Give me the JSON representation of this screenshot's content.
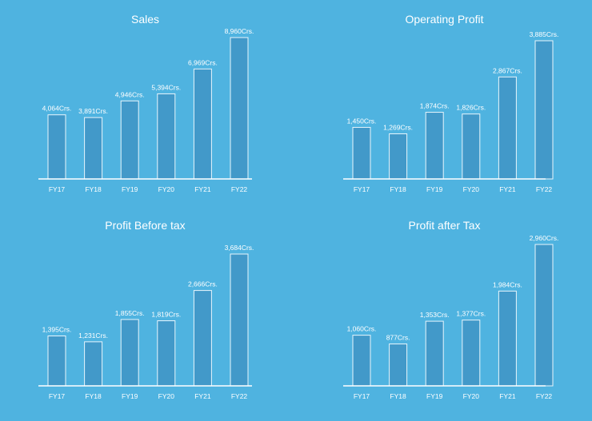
{
  "colors": {
    "background": "#4FB3E0",
    "bar_fill": "#4299C9",
    "bar_stroke": "#E8F5FC",
    "text": "#FFFFFF"
  },
  "chart_data": [
    {
      "type": "bar",
      "title": "Sales",
      "categories": [
        "FY17",
        "FY18",
        "FY19",
        "FY20",
        "FY21",
        "FY22"
      ],
      "values": [
        4064,
        3891,
        4946,
        5394,
        6969,
        8960
      ],
      "data_labels": [
        "4,064Crs.",
        "3,891Crs.",
        "4,946Crs.",
        "5,394Crs.",
        "6,969Crs.",
        "8,960Crs."
      ],
      "ylim": [
        0,
        8960
      ],
      "grid": false,
      "legend": "none"
    },
    {
      "type": "bar",
      "title": "Operating Profit",
      "categories": [
        "FY17",
        "FY18",
        "FY19",
        "FY20",
        "FY21",
        "FY22"
      ],
      "values": [
        1450,
        1269,
        1874,
        1826,
        2867,
        3885
      ],
      "data_labels": [
        "1,450Crs.",
        "1,269Crs.",
        "1,874Crs.",
        "1,826Crs.",
        "2,867Crs.",
        "3,885Crs."
      ],
      "ylim": [
        0,
        3885
      ],
      "grid": false,
      "legend": "none"
    },
    {
      "type": "bar",
      "title": "Profit Before tax",
      "categories": [
        "FY17",
        "FY18",
        "FY19",
        "FY20",
        "FY21",
        "FY22"
      ],
      "values": [
        1395,
        1231,
        1855,
        1819,
        2666,
        3684
      ],
      "data_labels": [
        "1,395Crs.",
        "1,231Crs.",
        "1,855Crs.",
        "1,819Crs.",
        "2,666Crs.",
        "3,684Crs."
      ],
      "ylim": [
        0,
        3684
      ],
      "grid": false,
      "legend": "none"
    },
    {
      "type": "bar",
      "title": "Profit after Tax",
      "categories": [
        "FY17",
        "FY18",
        "FY19",
        "FY20",
        "FY21",
        "FY22"
      ],
      "values": [
        1060,
        877,
        1353,
        1377,
        1984,
        2960
      ],
      "data_labels": [
        "1,060Crs.",
        "877Crs.",
        "1,353Crs.",
        "1,377Crs.",
        "1,984Crs.",
        "2,960Crs."
      ],
      "ylim": [
        0,
        2960
      ],
      "grid": false,
      "legend": "none"
    }
  ]
}
